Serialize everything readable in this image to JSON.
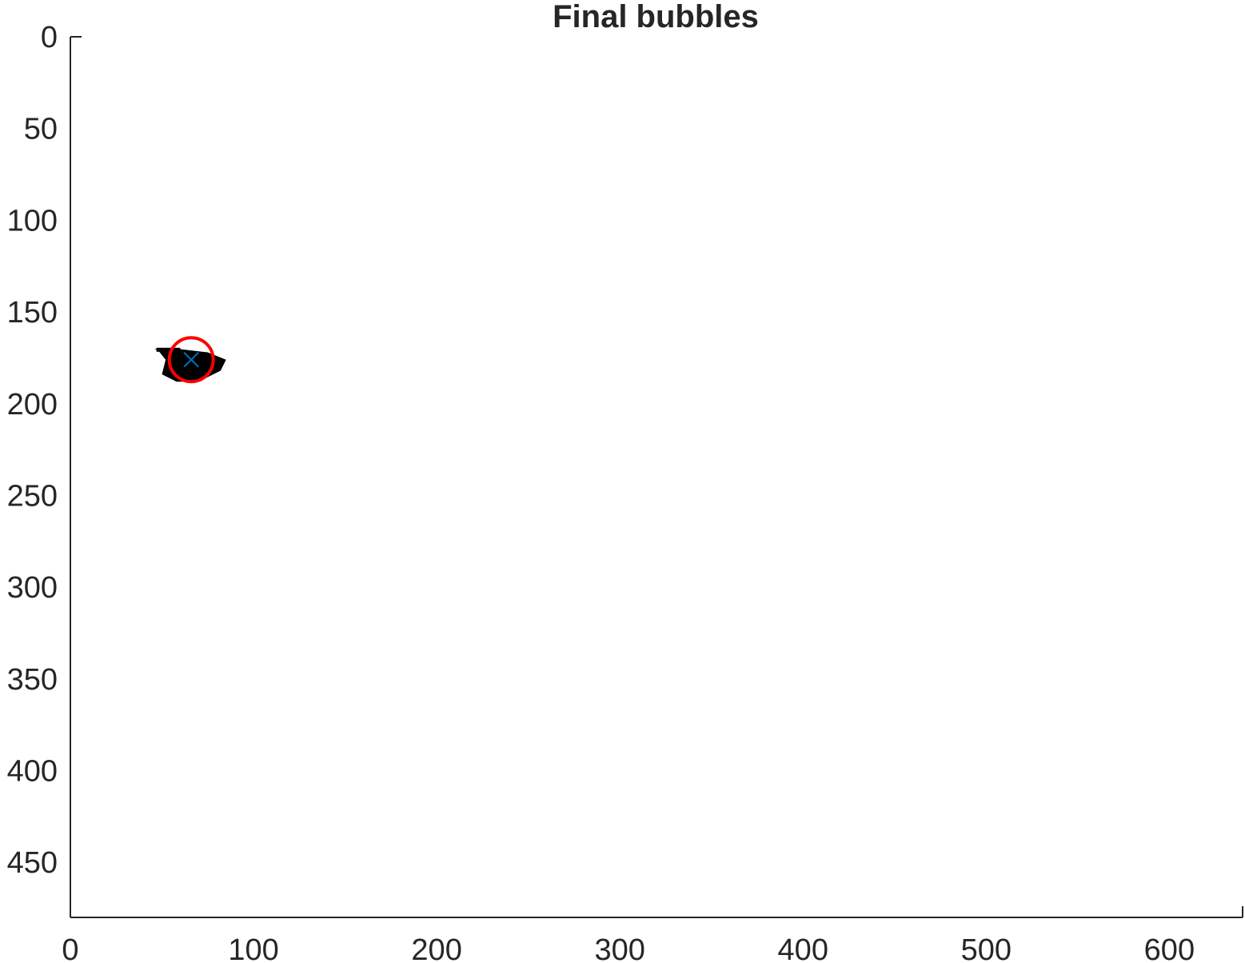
{
  "chart_data": {
    "type": "scatter",
    "title": "Final bubbles",
    "xlabel": "",
    "ylabel": "",
    "xlim": [
      0,
      640
    ],
    "ylim": [
      0,
      480
    ],
    "y_reversed": true,
    "grid": false,
    "x_ticks": [
      0,
      100,
      200,
      300,
      400,
      500,
      600
    ],
    "y_ticks": [
      0,
      50,
      100,
      150,
      200,
      250,
      300,
      350,
      400,
      450
    ],
    "image_blob": {
      "color": "#000000",
      "description_points": [
        [
          46,
          170
        ],
        [
          58,
          170
        ],
        [
          75,
          172
        ],
        [
          85,
          176
        ],
        [
          82,
          182
        ],
        [
          70,
          188
        ],
        [
          58,
          188
        ],
        [
          50,
          184
        ],
        [
          52,
          176
        ],
        [
          48,
          171
        ]
      ]
    },
    "bubbles": [
      {
        "x": 66,
        "y": 176,
        "radius": 12,
        "circle_color": "#ff0000",
        "center_marker": "x",
        "marker_color": "#0072bd"
      }
    ]
  }
}
